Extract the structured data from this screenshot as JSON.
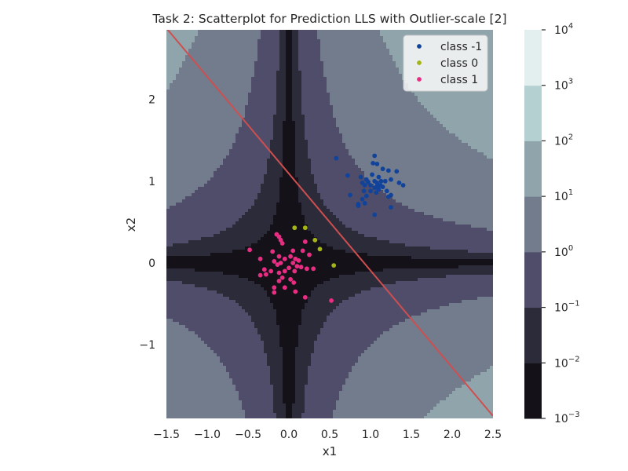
{
  "chart_data": {
    "type": "scatter",
    "title": "Task 2: Scatterplot for Prediction LLS with Outlier-scale [2]",
    "xlabel": "x1",
    "ylabel": "x2",
    "xlim": [
      -1.5,
      2.5
    ],
    "ylim": [
      -1.9,
      2.85
    ],
    "xticks": [
      -1.5,
      -1.0,
      -0.5,
      0.0,
      0.5,
      1.0,
      1.5,
      2.0,
      2.5
    ],
    "xtick_labels": [
      "−1.5",
      "−1.0",
      "−0.5",
      "0.0",
      "0.5",
      "1.0",
      "1.5",
      "2.0",
      "2.5"
    ],
    "yticks": [
      -1,
      0,
      1,
      2
    ],
    "ytick_labels": [
      "−1",
      "0",
      "1",
      "2"
    ],
    "grid": false,
    "legend_position": "top-right",
    "background_contour": {
      "function": "abs(x1 * x2) ** 2",
      "scale": "log",
      "levels": [
        0.001,
        0.01,
        0.1,
        1,
        10,
        100,
        1000,
        10000
      ],
      "level_colors": [
        "#141218",
        "#2c2b3a",
        "#4f4d69",
        "#727c8d",
        "#90a5ab",
        "#b5d0d1",
        "#e3eeee"
      ]
    },
    "colorbar": {
      "scale": "log",
      "ticks": [
        {
          "base": "10",
          "exp": "−3"
        },
        {
          "base": "10",
          "exp": "−2"
        },
        {
          "base": "10",
          "exp": "−1"
        },
        {
          "base": "10",
          "exp": "0"
        },
        {
          "base": "10",
          "exp": "1"
        },
        {
          "base": "10",
          "exp": "2"
        },
        {
          "base": "10",
          "exp": "3"
        },
        {
          "base": "10",
          "exp": "4"
        }
      ]
    },
    "decision_line": {
      "color": "#cd4f4f",
      "points": [
        [
          -1.5,
          2.87
        ],
        [
          2.5,
          -1.87
        ]
      ]
    },
    "series": [
      {
        "name": "class -1",
        "color": "#11439b",
        "points": [
          [
            0.58,
            1.28
          ],
          [
            1.05,
            1.31
          ],
          [
            1.03,
            1.22
          ],
          [
            1.08,
            1.21
          ],
          [
            1.15,
            1.15
          ],
          [
            1.22,
            1.13
          ],
          [
            1.32,
            1.12
          ],
          [
            0.72,
            1.07
          ],
          [
            0.88,
            1.05
          ],
          [
            0.95,
            1.02
          ],
          [
            1.02,
            1.08
          ],
          [
            1.1,
            1.05
          ],
          [
            1.18,
            1.0
          ],
          [
            1.25,
            1.02
          ],
          [
            0.9,
            0.98
          ],
          [
            0.93,
            0.95
          ],
          [
            0.97,
            0.99
          ],
          [
            1.0,
            0.95
          ],
          [
            1.05,
            1.0
          ],
          [
            1.08,
            0.98
          ],
          [
            1.12,
            0.95
          ],
          [
            1.15,
            0.93
          ],
          [
            1.35,
            0.98
          ],
          [
            1.4,
            0.95
          ],
          [
            1.05,
            0.92
          ],
          [
            1.1,
            0.9
          ],
          [
            1.2,
            0.88
          ],
          [
            0.92,
            0.88
          ],
          [
            1.0,
            0.88
          ],
          [
            1.07,
            0.86
          ],
          [
            0.75,
            0.83
          ],
          [
            0.95,
            0.82
          ],
          [
            1.25,
            0.83
          ],
          [
            1.22,
            0.81
          ],
          [
            0.9,
            0.78
          ],
          [
            0.85,
            0.72
          ],
          [
            0.93,
            0.73
          ],
          [
            1.25,
            0.68
          ],
          [
            0.85,
            0.7
          ],
          [
            1.05,
            0.59
          ],
          [
            1.08,
            0.94
          ],
          [
            1.13,
            1.0
          ]
        ]
      },
      {
        "name": "class 0",
        "color": "#a4b414",
        "points": [
          [
            0.07,
            0.43
          ],
          [
            0.2,
            0.43
          ],
          [
            0.32,
            0.28
          ],
          [
            0.38,
            0.17
          ],
          [
            0.55,
            -0.03
          ]
        ]
      },
      {
        "name": "class 1",
        "color": "#e92d83",
        "points": [
          [
            -0.15,
            0.35
          ],
          [
            -0.12,
            0.32
          ],
          [
            -0.1,
            0.28
          ],
          [
            -0.08,
            0.24
          ],
          [
            0.2,
            0.26
          ],
          [
            -0.48,
            0.16
          ],
          [
            -0.2,
            0.14
          ],
          [
            0.05,
            0.15
          ],
          [
            0.17,
            0.15
          ],
          [
            0.25,
            0.1
          ],
          [
            -0.35,
            0.05
          ],
          [
            -0.18,
            0.02
          ],
          [
            -0.12,
            0.08
          ],
          [
            -0.05,
            0.05
          ],
          [
            0.02,
            0.08
          ],
          [
            0.08,
            0.05
          ],
          [
            0.12,
            0.03
          ],
          [
            -0.14,
            -0.02
          ],
          [
            -0.1,
            0.0
          ],
          [
            0.05,
            0.0
          ],
          [
            0.15,
            -0.05
          ],
          [
            0.22,
            -0.07
          ],
          [
            0.3,
            -0.07
          ],
          [
            -0.3,
            -0.08
          ],
          [
            -0.22,
            -0.1
          ],
          [
            -0.12,
            -0.12
          ],
          [
            -0.05,
            -0.1
          ],
          [
            0.0,
            -0.06
          ],
          [
            0.07,
            -0.1
          ],
          [
            -0.35,
            -0.15
          ],
          [
            -0.28,
            -0.14
          ],
          [
            -0.08,
            -0.18
          ],
          [
            0.02,
            -0.2
          ],
          [
            -0.12,
            -0.22
          ],
          [
            0.06,
            -0.24
          ],
          [
            -0.18,
            -0.3
          ],
          [
            -0.18,
            -0.36
          ],
          [
            -0.05,
            -0.3
          ],
          [
            0.08,
            -0.35
          ],
          [
            0.2,
            -0.42
          ],
          [
            0.52,
            -0.46
          ],
          [
            0.1,
            -0.04
          ]
        ]
      }
    ]
  }
}
